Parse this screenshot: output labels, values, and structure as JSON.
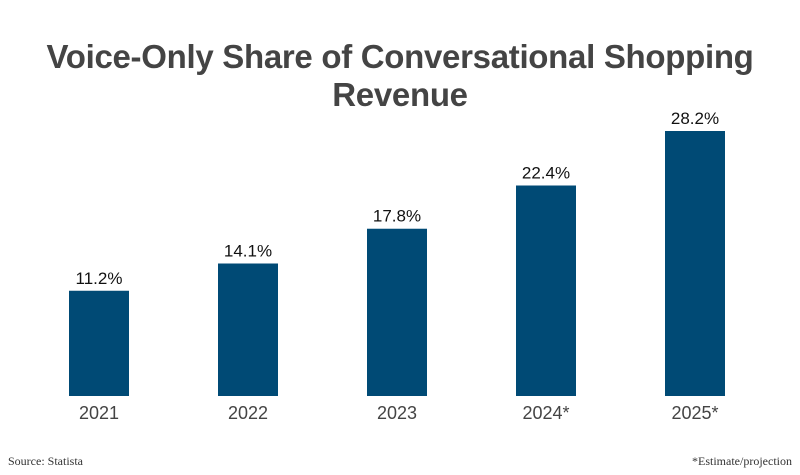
{
  "chart_data": {
    "type": "bar",
    "title": "Voice-Only Share of Conversational Shopping Revenue",
    "categories": [
      "2021",
      "2022",
      "2023",
      "2024*",
      "2025*"
    ],
    "values": [
      11.2,
      14.1,
      17.8,
      22.4,
      28.2
    ],
    "data_labels": [
      "11.2%",
      "14.1%",
      "17.8%",
      "22.4%",
      "28.2%"
    ],
    "xlabel": "",
    "ylabel": "",
    "ylim": [
      0,
      28.2
    ],
    "grid": false,
    "bar_color": "#004a75"
  },
  "footer": {
    "source": "Source: Statista",
    "note": "*Estimate/projection"
  }
}
